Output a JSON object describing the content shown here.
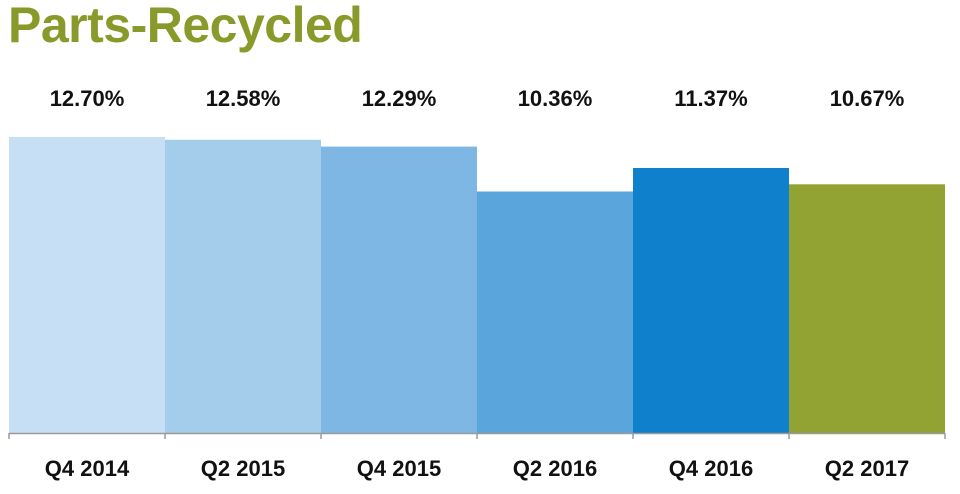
{
  "chart_data": {
    "type": "bar",
    "title": "Parts-Recycled",
    "categories": [
      "Q4 2014",
      "Q2 2015",
      "Q4 2015",
      "Q2 2016",
      "Q4 2016",
      "Q2 2017"
    ],
    "values": [
      12.7,
      12.58,
      12.29,
      10.36,
      11.37,
      10.67
    ],
    "value_labels": [
      "12.70%",
      "12.58%",
      "12.29%",
      "10.36%",
      "11.37%",
      "10.67%"
    ],
    "colors": [
      "#c7dff5",
      "#a4cdeb",
      "#7eb7e3",
      "#5aa5dc",
      "#0f80cc",
      "#92a233"
    ],
    "ylim": [
      0,
      12.7
    ],
    "grid": false,
    "legend": "none"
  }
}
